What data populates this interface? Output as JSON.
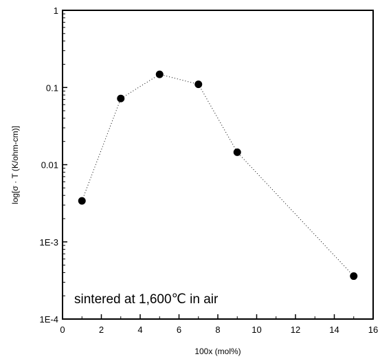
{
  "chart_data": {
    "type": "scatter",
    "xlabel": "100x (mol%)",
    "ylabel": "log[σ · T (K/ohm-cm)]",
    "xlim": [
      0,
      16
    ],
    "ylim": [
      0.0001,
      1
    ],
    "yscale": "log",
    "x_ticks": [
      "0",
      "2",
      "4",
      "6",
      "8",
      "10",
      "12",
      "14",
      "16"
    ],
    "y_ticks": [
      "1E-4",
      "1E-3",
      "0.01",
      "0.1",
      "1"
    ],
    "series": [
      {
        "x": [
          1,
          3,
          5,
          7,
          9,
          15
        ],
        "y": [
          0.0034,
          0.072,
          0.148,
          0.11,
          0.0145,
          0.00036
        ],
        "marker": "filled-circle",
        "line": "dotted",
        "color": "#000000"
      }
    ],
    "annotation": "sintered at 1,600℃ in air",
    "grid": false,
    "legend": "none"
  }
}
